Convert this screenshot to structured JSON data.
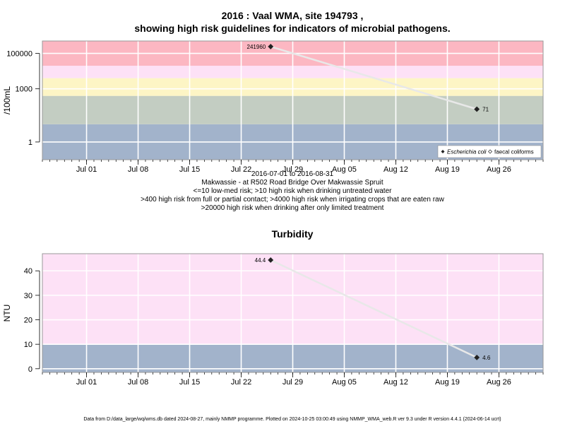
{
  "chart_data": [
    {
      "type": "scatter",
      "title_line1": "2016 : Vaal WMA, site 194793 ,",
      "title_line2": "showing high risk guidelines for indicators of microbial pathogens.",
      "ylabel": "/100mL",
      "yscale": "log",
      "yticks": [
        {
          "value": 1,
          "label": "1"
        },
        {
          "value": 1000,
          "label": "1000"
        },
        {
          "value": 100000,
          "label": "100000"
        }
      ],
      "xlim": [
        "2016-06-25",
        "2016-09-01"
      ],
      "xticks": [
        {
          "date": "2016-07-01",
          "label": "Jul 01"
        },
        {
          "date": "2016-07-08",
          "label": "Jul 08"
        },
        {
          "date": "2016-07-15",
          "label": "Jul 15"
        },
        {
          "date": "2016-07-22",
          "label": "Jul 22"
        },
        {
          "date": "2016-07-29",
          "label": "Jul 29"
        },
        {
          "date": "2016-08-05",
          "label": "Aug 05"
        },
        {
          "date": "2016-08-12",
          "label": "Aug 12"
        },
        {
          "date": "2016-08-19",
          "label": "Aug 19"
        },
        {
          "date": "2016-08-26",
          "label": "Aug 26"
        }
      ],
      "bands": [
        {
          "from": 0.1,
          "to": 10,
          "color": "#a2b3cb"
        },
        {
          "from": 10,
          "to": 400,
          "color": "#c3cdc2"
        },
        {
          "from": 400,
          "to": 4000,
          "color": "#fdf5c5"
        },
        {
          "from": 4000,
          "to": 20000,
          "color": "#fde1f6"
        },
        {
          "from": 20000,
          "to": 500000,
          "color": "#fcb7c2"
        }
      ],
      "series": [
        {
          "name": "Escherichia coli",
          "marker": "filled-diamond",
          "points": [
            {
              "x": "2016-07-26",
              "y": 241960,
              "label": "241960"
            },
            {
              "x": "2016-08-23",
              "y": 71,
              "label": "71"
            }
          ]
        }
      ],
      "legend": {
        "position": "bottom-right",
        "entries": [
          {
            "label": "Escherichia coli",
            "marker": "filled-diamond",
            "italic": true
          },
          {
            "label": "faecal coliforms",
            "marker": "open-diamond",
            "italic": false
          }
        ]
      },
      "notes": [
        "2016-07-01 to 2016-08-31",
        "Makwassie - at R502 Road Bridge Over Makwassie Spruit",
        "<=10 low-med risk; >10 high risk when drinking untreated water",
        ">400 high risk from full or partial contact; >4000 high risk when irrigating crops that are eaten raw",
        ">20000 high risk when drinking after only limited treatment"
      ]
    },
    {
      "type": "scatter",
      "title": "Turbidity",
      "ylabel": "NTU",
      "ylim": [
        -1.5,
        47
      ],
      "yticks": [
        {
          "value": 0,
          "label": "0"
        },
        {
          "value": 10,
          "label": "10"
        },
        {
          "value": 20,
          "label": "20"
        },
        {
          "value": 30,
          "label": "30"
        },
        {
          "value": 40,
          "label": "40"
        }
      ],
      "xlim": [
        "2016-06-25",
        "2016-09-01"
      ],
      "xticks": [
        {
          "date": "2016-07-01",
          "label": "Jul 01"
        },
        {
          "date": "2016-07-08",
          "label": "Jul 08"
        },
        {
          "date": "2016-07-15",
          "label": "Jul 15"
        },
        {
          "date": "2016-07-22",
          "label": "Jul 22"
        },
        {
          "date": "2016-07-29",
          "label": "Jul 29"
        },
        {
          "date": "2016-08-05",
          "label": "Aug 05"
        },
        {
          "date": "2016-08-12",
          "label": "Aug 12"
        },
        {
          "date": "2016-08-19",
          "label": "Aug 19"
        },
        {
          "date": "2016-08-26",
          "label": "Aug 26"
        }
      ],
      "bands": [
        {
          "from": -1.5,
          "to": 10,
          "color": "#a2b3cb"
        },
        {
          "from": 10,
          "to": 47,
          "color": "#fde1f6"
        }
      ],
      "series": [
        {
          "name": "",
          "marker": "filled-diamond",
          "points": [
            {
              "x": "2016-07-26",
              "y": 44.4,
              "label": "44.4"
            },
            {
              "x": "2016-08-23",
              "y": 4.6,
              "label": "4.6"
            }
          ]
        }
      ]
    }
  ],
  "footer": "Data from D:/data_large/wq/wms.db dated 2024-08-27, mainly NMMP programme. Plotted on 2024-10-25 03:00:49 using NMMP_WMA_web.R ver 9.3 under R version 4.4.1 (2024-06-14 ucrt)"
}
